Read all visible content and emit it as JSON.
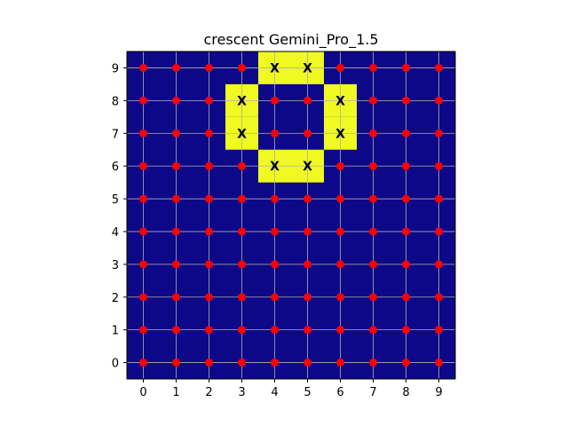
{
  "chart_data": {
    "type": "heatmap",
    "title": "crescent Gemini_Pro_1.5",
    "xlabel": "",
    "ylabel": "",
    "x_ticks": [
      "0",
      "1",
      "2",
      "3",
      "4",
      "5",
      "6",
      "7",
      "8",
      "9"
    ],
    "y_ticks": [
      "0",
      "1",
      "2",
      "3",
      "4",
      "5",
      "6",
      "7",
      "8",
      "9"
    ],
    "xlim": [
      -0.5,
      9.5
    ],
    "ylim": [
      -0.5,
      9.5
    ],
    "grid": true,
    "colors": {
      "background": "#0d0887",
      "highlight": "#f0f921",
      "grid": "#b0b0b0",
      "point": "#ff0000",
      "marker_text": "#000000"
    },
    "highlighted_cells": [
      {
        "x": 4,
        "y": 9
      },
      {
        "x": 5,
        "y": 9
      },
      {
        "x": 3,
        "y": 8
      },
      {
        "x": 6,
        "y": 8
      },
      {
        "x": 3,
        "y": 7
      },
      {
        "x": 6,
        "y": 7
      },
      {
        "x": 4,
        "y": 6
      },
      {
        "x": 5,
        "y": 6
      }
    ],
    "marker_label": "X",
    "point_grid": {
      "x": [
        0,
        1,
        2,
        3,
        4,
        5,
        6,
        7,
        8,
        9
      ],
      "y": [
        0,
        1,
        2,
        3,
        4,
        5,
        6,
        7,
        8,
        9
      ]
    }
  }
}
